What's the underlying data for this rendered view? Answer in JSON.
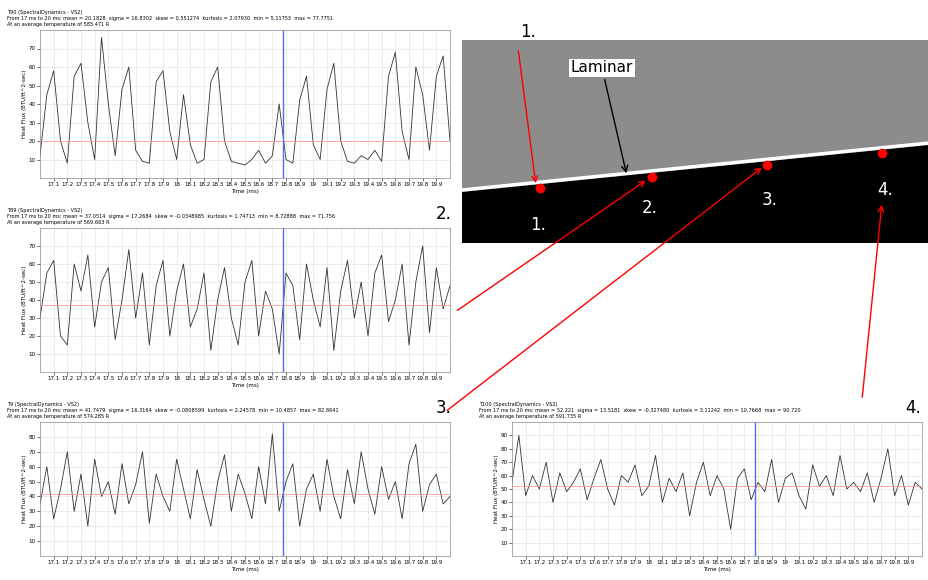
{
  "chart_data": [
    {
      "type": "line",
      "panel_label": "1.",
      "title": "T90 (SpectralDynamics - VS2)",
      "subtitle": "From 17 ms to 20 ms: mean = 20.1828  sigma = 16.8302  skew = 0.551274  kurtosis = 2.07930  min = 5.11753  max = 77.7751",
      "annotation": "At an average temperature of 585.471 R",
      "x_label": "Time (ms)",
      "y_label": "Heat Flux (BTU/ft^2-sec)",
      "x": [
        17.0,
        17.05,
        17.1,
        17.15,
        17.2,
        17.25,
        17.3,
        17.35,
        17.4,
        17.45,
        17.5,
        17.55,
        17.6,
        17.65,
        17.7,
        17.75,
        17.8,
        17.85,
        17.9,
        17.95,
        18.0,
        18.05,
        18.1,
        18.15,
        18.2,
        18.25,
        18.3,
        18.35,
        18.4,
        18.45,
        18.5,
        18.55,
        18.6,
        18.65,
        18.7,
        18.75,
        18.8,
        18.85,
        18.9,
        18.95,
        19.0,
        19.05,
        19.1,
        19.15,
        19.2,
        19.25,
        19.3,
        19.35,
        19.4,
        19.45,
        19.5,
        19.55,
        19.6,
        19.65,
        19.7,
        19.75,
        19.8,
        19.85,
        19.9,
        19.95,
        20.0
      ],
      "values": [
        12,
        45,
        58,
        20,
        8,
        55,
        62,
        30,
        10,
        76,
        40,
        12,
        48,
        60,
        15,
        9,
        8,
        52,
        58,
        25,
        10,
        45,
        18,
        8,
        10,
        52,
        60,
        20,
        9,
        8,
        7,
        10,
        15,
        8,
        12,
        40,
        10,
        8,
        42,
        55,
        18,
        10,
        48,
        62,
        20,
        9,
        8,
        12,
        10,
        15,
        9,
        55,
        68,
        25,
        10,
        60,
        45,
        15,
        55,
        66,
        20
      ],
      "color": "#333333",
      "reference_y": 20.1828,
      "reference_x": 18.78,
      "xlim": [
        17.0,
        20.0
      ],
      "xticks": [
        17.1,
        17.2,
        17.3,
        17.4,
        17.5,
        17.6,
        17.7,
        17.8,
        17.9,
        18,
        18.1,
        18.2,
        18.3,
        18.4,
        18.5,
        18.6,
        18.7,
        18.8,
        18.9,
        19,
        19.1,
        19.2,
        19.3,
        19.4,
        19.5,
        19.6,
        19.7,
        19.8,
        19.9
      ],
      "ylim": [
        0,
        80
      ],
      "yticks": [
        10,
        20,
        30,
        40,
        50,
        60,
        70
      ],
      "grid": true
    },
    {
      "type": "line",
      "panel_label": "2.",
      "title": "T89 (SpectralDynamics - VS2)",
      "subtitle": "From 17 ms to 20 ms: mean = 37.0514  sigma = 17.2684  skew = -0.0348985  kurtosis = 1.74713  min = 8.72888  max = 71.756",
      "annotation": "At an average temperature of 569.663 R",
      "x_label": "Time (ms)",
      "y_label": "Heat Flux (BTU/ft^2-sec)",
      "x": [
        17.0,
        17.05,
        17.1,
        17.15,
        17.2,
        17.25,
        17.3,
        17.35,
        17.4,
        17.45,
        17.5,
        17.55,
        17.6,
        17.65,
        17.7,
        17.75,
        17.8,
        17.85,
        17.9,
        17.95,
        18.0,
        18.05,
        18.1,
        18.15,
        18.2,
        18.25,
        18.3,
        18.35,
        18.4,
        18.45,
        18.5,
        18.55,
        18.6,
        18.65,
        18.7,
        18.75,
        18.8,
        18.85,
        18.9,
        18.95,
        19.0,
        19.05,
        19.1,
        19.15,
        19.2,
        19.25,
        19.3,
        19.35,
        19.4,
        19.45,
        19.5,
        19.55,
        19.6,
        19.65,
        19.7,
        19.75,
        19.8,
        19.85,
        19.9,
        19.95,
        20.0
      ],
      "values": [
        30,
        55,
        62,
        20,
        15,
        60,
        45,
        65,
        25,
        50,
        58,
        18,
        40,
        68,
        30,
        55,
        15,
        48,
        62,
        20,
        45,
        60,
        25,
        35,
        55,
        12,
        40,
        58,
        30,
        15,
        50,
        62,
        20,
        45,
        35,
        10,
        55,
        48,
        18,
        60,
        40,
        25,
        58,
        12,
        45,
        62,
        30,
        50,
        20,
        55,
        65,
        28,
        40,
        60,
        15,
        50,
        70,
        22,
        58,
        35,
        48
      ],
      "color": "#333333",
      "reference_y": 37.0514,
      "reference_x": 18.78,
      "xlim": [
        17.0,
        20.0
      ],
      "xticks": [
        17.1,
        17.2,
        17.3,
        17.4,
        17.5,
        17.6,
        17.7,
        17.8,
        17.9,
        18,
        18.1,
        18.2,
        18.3,
        18.4,
        18.5,
        18.6,
        18.7,
        18.8,
        18.9,
        19,
        19.1,
        19.2,
        19.3,
        19.4,
        19.5,
        19.6,
        19.7,
        19.8,
        19.9
      ],
      "ylim": [
        0,
        80
      ],
      "yticks": [
        10,
        20,
        30,
        40,
        50,
        60,
        70
      ],
      "grid": true
    },
    {
      "type": "line",
      "panel_label": "3.",
      "title": "T9 (SpectralDynamics - VS2)",
      "subtitle": "From 17 ms to 20 ms: mean = 41.7479  sigma = 16.3164  skew = -0.0808599  kurtosis = 2.24578  min = 10.4857  max = 82.8641",
      "annotation": "At an average temperature of 574.285 R",
      "x_label": "Time (ms)",
      "y_label": "Heat Flux (BTU/ft^2-sec)",
      "x": [
        17.0,
        17.05,
        17.1,
        17.15,
        17.2,
        17.25,
        17.3,
        17.35,
        17.4,
        17.45,
        17.5,
        17.55,
        17.6,
        17.65,
        17.7,
        17.75,
        17.8,
        17.85,
        17.9,
        17.95,
        18.0,
        18.05,
        18.1,
        18.15,
        18.2,
        18.25,
        18.3,
        18.35,
        18.4,
        18.45,
        18.5,
        18.55,
        18.6,
        18.65,
        18.7,
        18.75,
        18.8,
        18.85,
        18.9,
        18.95,
        19.0,
        19.05,
        19.1,
        19.15,
        19.2,
        19.25,
        19.3,
        19.35,
        19.4,
        19.45,
        19.5,
        19.55,
        19.6,
        19.65,
        19.7,
        19.75,
        19.8,
        19.85,
        19.9,
        19.95,
        20.0
      ],
      "values": [
        35,
        60,
        25,
        45,
        70,
        30,
        55,
        20,
        65,
        40,
        50,
        28,
        62,
        35,
        48,
        70,
        22,
        55,
        40,
        30,
        65,
        45,
        25,
        58,
        38,
        20,
        50,
        68,
        30,
        55,
        42,
        25,
        60,
        35,
        82,
        30,
        50,
        62,
        20,
        45,
        55,
        30,
        65,
        40,
        25,
        58,
        35,
        70,
        45,
        28,
        60,
        38,
        50,
        25,
        62,
        75,
        30,
        48,
        55,
        35,
        40
      ],
      "color": "#333333",
      "reference_y": 41.7479,
      "reference_x": 18.78,
      "xlim": [
        17.0,
        20.0
      ],
      "xticks": [
        17.1,
        17.2,
        17.3,
        17.4,
        17.5,
        17.6,
        17.7,
        17.8,
        17.9,
        18,
        18.1,
        18.2,
        18.3,
        18.4,
        18.5,
        18.6,
        18.7,
        18.8,
        18.9,
        19,
        19.1,
        19.2,
        19.3,
        19.4,
        19.5,
        19.6,
        19.7,
        19.8,
        19.9
      ],
      "ylim": [
        0,
        90
      ],
      "yticks": [
        10,
        20,
        30,
        40,
        50,
        60,
        70,
        80
      ],
      "grid": true
    },
    {
      "type": "line",
      "panel_label": "4.",
      "title": "T100 (SpectralDynamics - VS2)",
      "subtitle": "From 17 ms to 20 ms: mean = 52.221  sigma = 13.5181  skew = -0.327480  kurtosis = 3.11242  min = 10.7668  max = 90.720",
      "annotation": "At an average temperature of 591.735 R",
      "x_label": "Time (ms)",
      "y_label": "Heat Flux (BTU/ft^2-sec)",
      "x": [
        17.0,
        17.05,
        17.1,
        17.15,
        17.2,
        17.25,
        17.3,
        17.35,
        17.4,
        17.45,
        17.5,
        17.55,
        17.6,
        17.65,
        17.7,
        17.75,
        17.8,
        17.85,
        17.9,
        17.95,
        18.0,
        18.05,
        18.1,
        18.15,
        18.2,
        18.25,
        18.3,
        18.35,
        18.4,
        18.45,
        18.5,
        18.55,
        18.6,
        18.65,
        18.7,
        18.75,
        18.8,
        18.85,
        18.9,
        18.95,
        19.0,
        19.05,
        19.1,
        19.15,
        19.2,
        19.25,
        19.3,
        19.35,
        19.4,
        19.45,
        19.5,
        19.55,
        19.6,
        19.65,
        19.7,
        19.75,
        19.8,
        19.85,
        19.9,
        19.95,
        20.0
      ],
      "values": [
        55,
        90,
        45,
        60,
        50,
        70,
        40,
        62,
        48,
        55,
        65,
        42,
        58,
        72,
        50,
        38,
        60,
        55,
        68,
        45,
        52,
        75,
        40,
        58,
        48,
        62,
        30,
        55,
        70,
        45,
        60,
        50,
        20,
        58,
        65,
        42,
        55,
        48,
        72,
        40,
        58,
        62,
        45,
        35,
        68,
        52,
        60,
        45,
        75,
        50,
        55,
        48,
        62,
        40,
        58,
        80,
        45,
        60,
        38,
        55,
        50
      ],
      "color": "#333333",
      "reference_y": 52.221,
      "reference_x": 18.78,
      "xlim": [
        17.0,
        20.0
      ],
      "xticks": [
        17.1,
        17.2,
        17.3,
        17.4,
        17.5,
        17.6,
        17.7,
        17.8,
        17.9,
        18,
        18.1,
        18.2,
        18.3,
        18.4,
        18.5,
        18.6,
        18.7,
        18.8,
        18.9,
        19,
        19.1,
        19.2,
        19.3,
        19.4,
        19.5,
        19.6,
        19.7,
        19.8,
        19.9
      ],
      "ylim": [
        0,
        100
      ],
      "yticks": [
        10,
        20,
        30,
        40,
        50,
        60,
        70,
        80,
        90
      ],
      "grid": true
    }
  ],
  "image": {
    "annotation": "Laminar",
    "point_labels": [
      "1.",
      "2.",
      "3.",
      "4."
    ]
  }
}
